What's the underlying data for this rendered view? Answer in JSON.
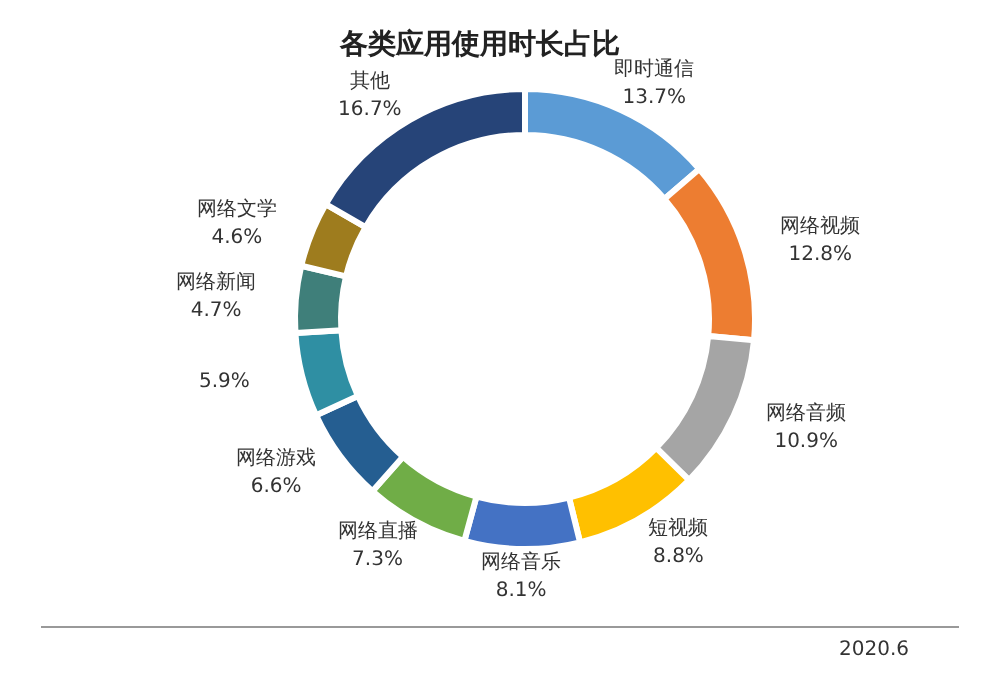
{
  "chart_data": {
    "type": "donut",
    "title": "各类应用使用时长占比",
    "categories": [
      "即时通信",
      "网络视频",
      "网络音频",
      "短视频",
      "网络音乐",
      "网络直播",
      "网络游戏",
      null,
      "网络新闻",
      "网络文学",
      "其他"
    ],
    "values": [
      13.7,
      12.8,
      10.9,
      8.8,
      8.1,
      7.3,
      6.6,
      5.9,
      4.7,
      4.6,
      16.7
    ],
    "colors": [
      "#5b9bd5",
      "#ed7d31",
      "#a5a5a5",
      "#ffc000",
      "#4472c4",
      "#70ad47",
      "#255e91",
      "#2f8fa3",
      "#3f7f7a",
      "#9e7c1e",
      "#264478"
    ],
    "value_labels": [
      "13.7%",
      "12.8%",
      "10.9%",
      "8.8%",
      "8.1%",
      "7.3%",
      "6.6%",
      "5.9%",
      "4.7%",
      "4.6%",
      "16.7%"
    ],
    "annotations": [
      "2020.6"
    ]
  }
}
